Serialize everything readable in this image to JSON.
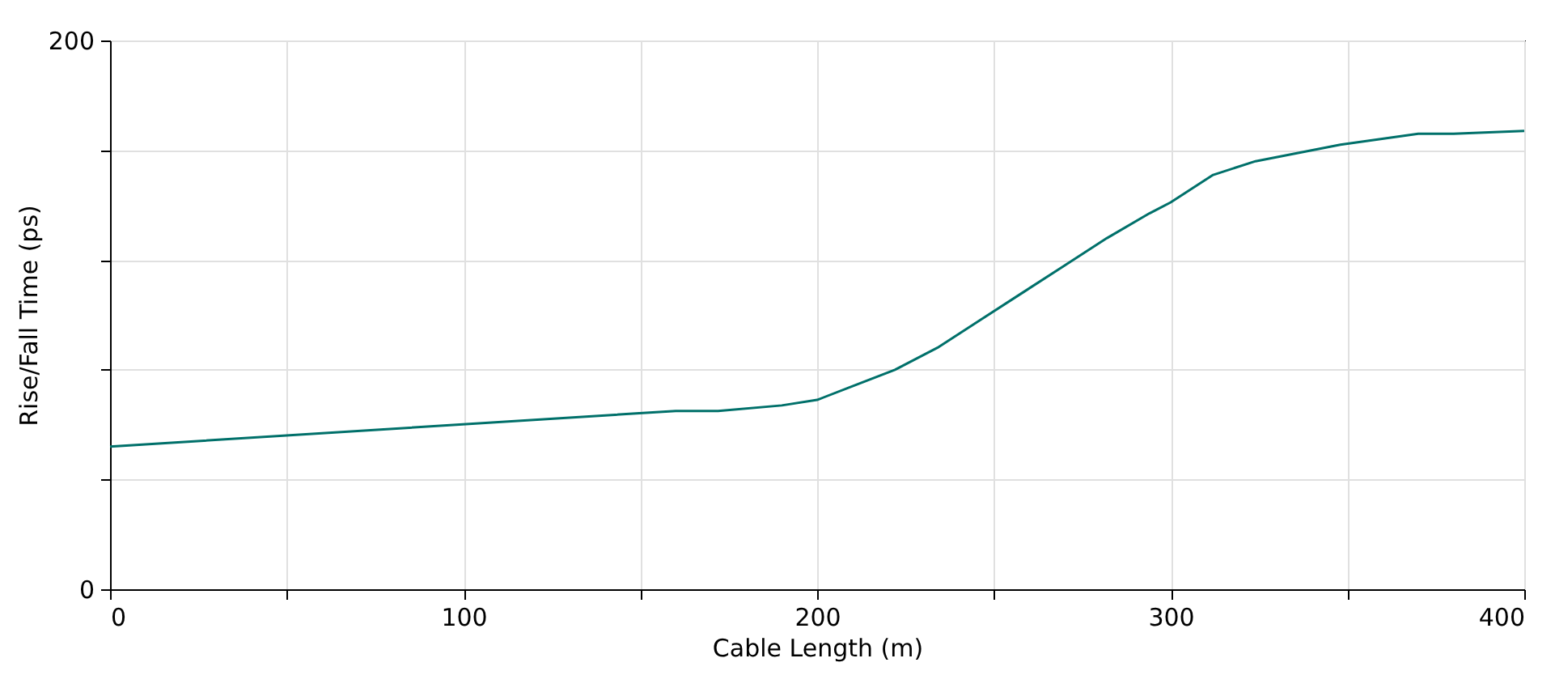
{
  "chart_data": {
    "type": "line",
    "xlabel": "Cable Length (m)",
    "ylabel": "Rise/Fall Time (ps)",
    "x": [
      0,
      160,
      172,
      190,
      200,
      210,
      222,
      234,
      246,
      258,
      270,
      282,
      294,
      300,
      312,
      324,
      336,
      348,
      370,
      380,
      400
    ],
    "series": [
      {
        "color": "#00706a",
        "values": [
          52,
          65,
          65,
          67,
          69,
          74,
          80,
          88,
          98,
          108,
          118,
          128,
          137,
          141,
          151,
          156,
          159,
          162,
          166,
          166,
          167
        ]
      }
    ],
    "xlim": [
      0,
      400
    ],
    "ylim": [
      0,
      200
    ],
    "xticks": [
      0,
      {
        "value": 50,
        "label": null
      },
      100,
      {
        "value": 150,
        "label": null
      },
      200,
      {
        "value": 250,
        "label": null
      },
      300,
      {
        "value": 350,
        "label": null
      },
      400
    ],
    "yticks": [
      0,
      {
        "value": 40,
        "label": null
      },
      {
        "value": 80,
        "label": null
      },
      {
        "value": 120,
        "label": null
      },
      {
        "value": 160,
        "label": null
      },
      200
    ],
    "grid": true,
    "marker": "none",
    "line_style": "solid"
  }
}
